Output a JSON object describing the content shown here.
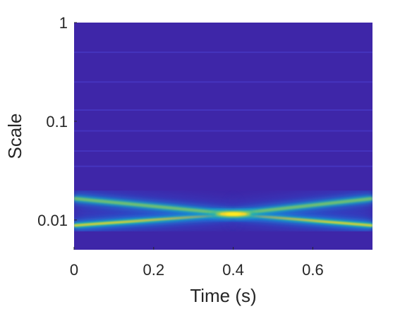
{
  "chart_data": {
    "type": "heatmap",
    "title": "",
    "xlabel": "Time (s)",
    "ylabel": "Scale",
    "xlim": [
      0,
      0.75
    ],
    "ylim": [
      0.005,
      1
    ],
    "yscale": "log",
    "xticks": [
      {
        "value": 0,
        "label": "0"
      },
      {
        "value": 0.2,
        "label": "0.2"
      },
      {
        "value": 0.4,
        "label": "0.4"
      },
      {
        "value": 0.6,
        "label": "0.6"
      }
    ],
    "yticks": [
      {
        "value": 1,
        "label": "1"
      },
      {
        "value": 0.1,
        "label": "0.1"
      },
      {
        "value": 0.01,
        "label": "0.01"
      }
    ],
    "colormap": "parula",
    "background_color": "#3e26a8",
    "ridges": [
      {
        "name": "",
        "points": [
          [
            0,
            0.0088
          ],
          [
            0.4,
            0.0115
          ]
        ]
      },
      {
        "name": "",
        "points": [
          [
            0.4,
            0.0115
          ],
          [
            0.75,
            0.0088
          ]
        ]
      },
      {
        "name": "",
        "points": [
          [
            0,
            0.0165
          ],
          [
            0.4,
            0.0115
          ]
        ]
      },
      {
        "name": "",
        "points": [
          [
            0.4,
            0.0115
          ],
          [
            0.75,
            0.0165
          ]
        ]
      }
    ],
    "peak": {
      "time": 0.4,
      "scale": 0.0115
    }
  }
}
